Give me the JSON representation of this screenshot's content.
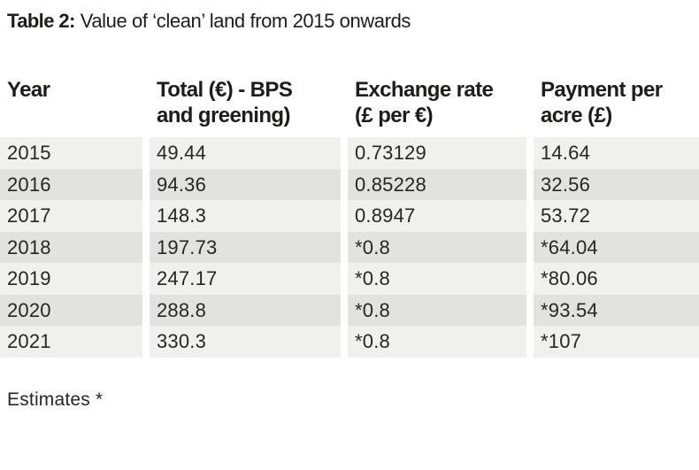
{
  "title": {
    "prefix": "Table 2:",
    "text": "Value of ‘clean’ land from 2015 onwards"
  },
  "chart_data": {
    "type": "table",
    "title": "Table 2: Value of ‘clean’ land from 2015 onwards",
    "columns": [
      "Year",
      "Total (€) - BPS and greening)",
      "Exchange rate (£ per €)",
      "Payment per acre (£)"
    ],
    "rows": [
      [
        "2015",
        "49.44",
        "0.73129",
        "14.64"
      ],
      [
        "2016",
        "94.36",
        "0.85228",
        "32.56"
      ],
      [
        "2017",
        "148.3",
        "0.8947",
        "53.72"
      ],
      [
        "2018",
        "197.73",
        "*0.8",
        "*64.04"
      ],
      [
        "2019",
        "247.17",
        "*0.8",
        "*80.06"
      ],
      [
        "2020",
        "288.8",
        "*0.8",
        "*93.54"
      ],
      [
        "2021",
        "330.3",
        "*0.8",
        "*107"
      ]
    ],
    "footnote": "Estimates *",
    "layout_hints": {
      "row_striping": "alternating light/dark gray, header on white",
      "column_gaps": "white 8px gutters between columns"
    }
  },
  "header_lines": {
    "col1": {
      "line1": "Year",
      "line2": ""
    },
    "col2": {
      "line1": "Total (€) - BPS",
      "line2": "and greening)"
    },
    "col3": {
      "line1": "Exchange rate",
      "line2": "(£ per €)"
    },
    "col4": {
      "line1": "Payment per",
      "line2": "acre (£)"
    }
  },
  "footnote": "Estimates *",
  "colors": {
    "row_light": "#f0f0ee",
    "row_dark": "#e2e2e0",
    "text": "#1d1d1b",
    "background": "#ffffff"
  }
}
